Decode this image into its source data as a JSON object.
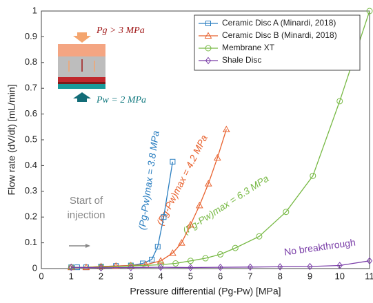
{
  "chart_data": {
    "type": "line",
    "x_label": "Pressure differential (Pg-Pw) [MPa]",
    "y_label": "Flow rate (dV/dt) [mL/min]",
    "xlim": [
      0,
      11
    ],
    "xticks": [
      0,
      1,
      2,
      3,
      4,
      5,
      6,
      7,
      8,
      9,
      10,
      11
    ],
    "ylim": [
      0,
      1
    ],
    "yticks": [
      0,
      0.1,
      0.2,
      0.3,
      0.4,
      0.5,
      0.6,
      0.7,
      0.8,
      0.9,
      1
    ],
    "legend": "top-right",
    "series": [
      {
        "name": "Ceramic Disc A (Minardi, 2018)",
        "color": "#2a7ec0",
        "marker": "square",
        "x": [
          1,
          1.2,
          1.5,
          2,
          2.5,
          3,
          3.4,
          3.7,
          3.9,
          4.1,
          4.4
        ],
        "values": [
          0.005,
          0.005,
          0.005,
          0.008,
          0.01,
          0.012,
          0.02,
          0.035,
          0.085,
          0.2,
          0.415
        ]
      },
      {
        "name": "Ceramic Disc B (Minardi, 2018)",
        "color": "#e8602c",
        "marker": "triangle",
        "x": [
          1,
          1.5,
          2,
          2.5,
          3,
          3.5,
          4,
          4.4,
          4.7,
          5,
          5.3,
          5.6,
          5.9,
          6.2
        ],
        "values": [
          0.005,
          0.005,
          0.008,
          0.01,
          0.012,
          0.015,
          0.03,
          0.06,
          0.1,
          0.17,
          0.245,
          0.33,
          0.43,
          0.54
        ]
      },
      {
        "name": "Membrane XT",
        "color": "#77b944",
        "marker": "circle",
        "x": [
          1,
          2,
          3,
          4,
          4.5,
          5,
          5.5,
          6,
          6.5,
          7.3,
          8.2,
          9.1,
          10,
          11
        ],
        "values": [
          0.005,
          0.005,
          0.01,
          0.015,
          0.02,
          0.03,
          0.04,
          0.055,
          0.08,
          0.125,
          0.22,
          0.36,
          0.65,
          1
        ]
      },
      {
        "name": "Shale Disc",
        "color": "#7a3ea8",
        "marker": "diamond",
        "x": [
          1,
          2,
          3,
          4,
          5,
          6,
          7,
          8,
          9,
          10,
          11
        ],
        "values": [
          0.005,
          0.003,
          0.004,
          0.005,
          0.004,
          0.005,
          0.006,
          0.007,
          0.008,
          0.012,
          0.03
        ]
      }
    ],
    "annotations": [
      "Start of",
      "injection",
      "(Pg-Pw)max = 3.8 MPa",
      "(Pg-Pw)max = 4.2 MPa",
      "(Pg-Pw)max = 6.3 MPa",
      "No breakthrough"
    ],
    "inset_labels": [
      "Pg > 3 MPa",
      "Pw = 2 MPa"
    ]
  }
}
